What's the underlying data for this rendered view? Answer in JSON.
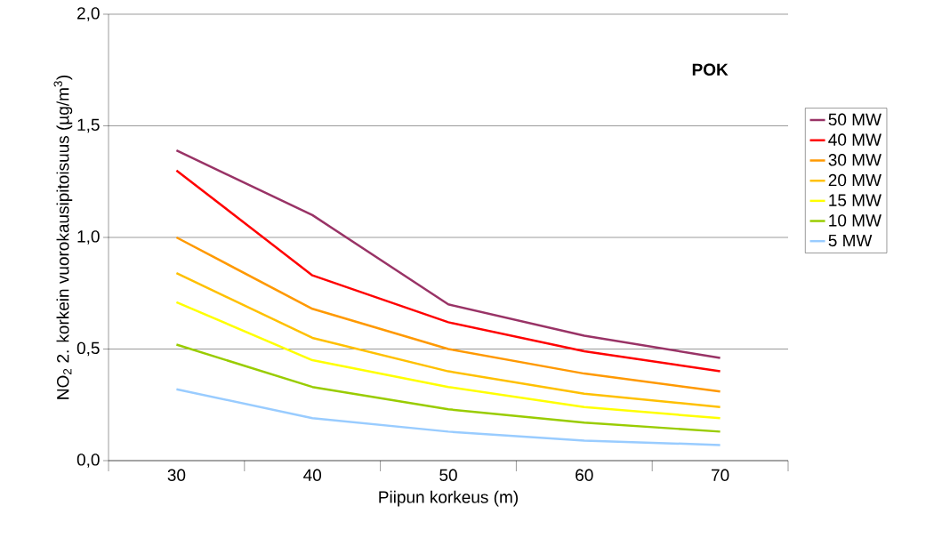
{
  "chart_data": {
    "type": "line",
    "xlabel": "Piipun korkeus (m)",
    "ylabel": "NO$_{2}$ 2. korkein vuorokausipitoisuus (µg/m$^{3}$)",
    "annotations": [
      "POK"
    ],
    "categories": [
      "30",
      "40",
      "50",
      "60",
      "70"
    ],
    "series": [
      {
        "name": "50 MW",
        "color": "#993366",
        "values": [
          1.39,
          1.1,
          0.7,
          0.56,
          0.46
        ]
      },
      {
        "name": "40 MW",
        "color": "#ff0000",
        "values": [
          1.3,
          0.83,
          0.62,
          0.49,
          0.4
        ]
      },
      {
        "name": "30 MW",
        "color": "#ff9900",
        "values": [
          1.0,
          0.68,
          0.5,
          0.39,
          0.31
        ]
      },
      {
        "name": "20 MW",
        "color": "#ffc000",
        "values": [
          0.84,
          0.55,
          0.4,
          0.3,
          0.24
        ]
      },
      {
        "name": "15 MW",
        "color": "#ffff00",
        "values": [
          0.71,
          0.45,
          0.33,
          0.24,
          0.19
        ]
      },
      {
        "name": "10 MW",
        "color": "#99cc00",
        "values": [
          0.52,
          0.33,
          0.23,
          0.17,
          0.13
        ]
      },
      {
        "name": "5 MW",
        "color": "#99ccff",
        "values": [
          0.32,
          0.19,
          0.13,
          0.09,
          0.07
        ]
      }
    ],
    "ylim": [
      0,
      2
    ],
    "yticks": [
      {
        "value": 0,
        "label": "0,0"
      },
      {
        "value": 0.5,
        "label": "0,5"
      },
      {
        "value": 1,
        "label": "1,0"
      },
      {
        "value": 1.5,
        "label": "1,5"
      },
      {
        "value": 2,
        "label": "2,0"
      }
    ],
    "grid": "y",
    "legend": "right"
  }
}
